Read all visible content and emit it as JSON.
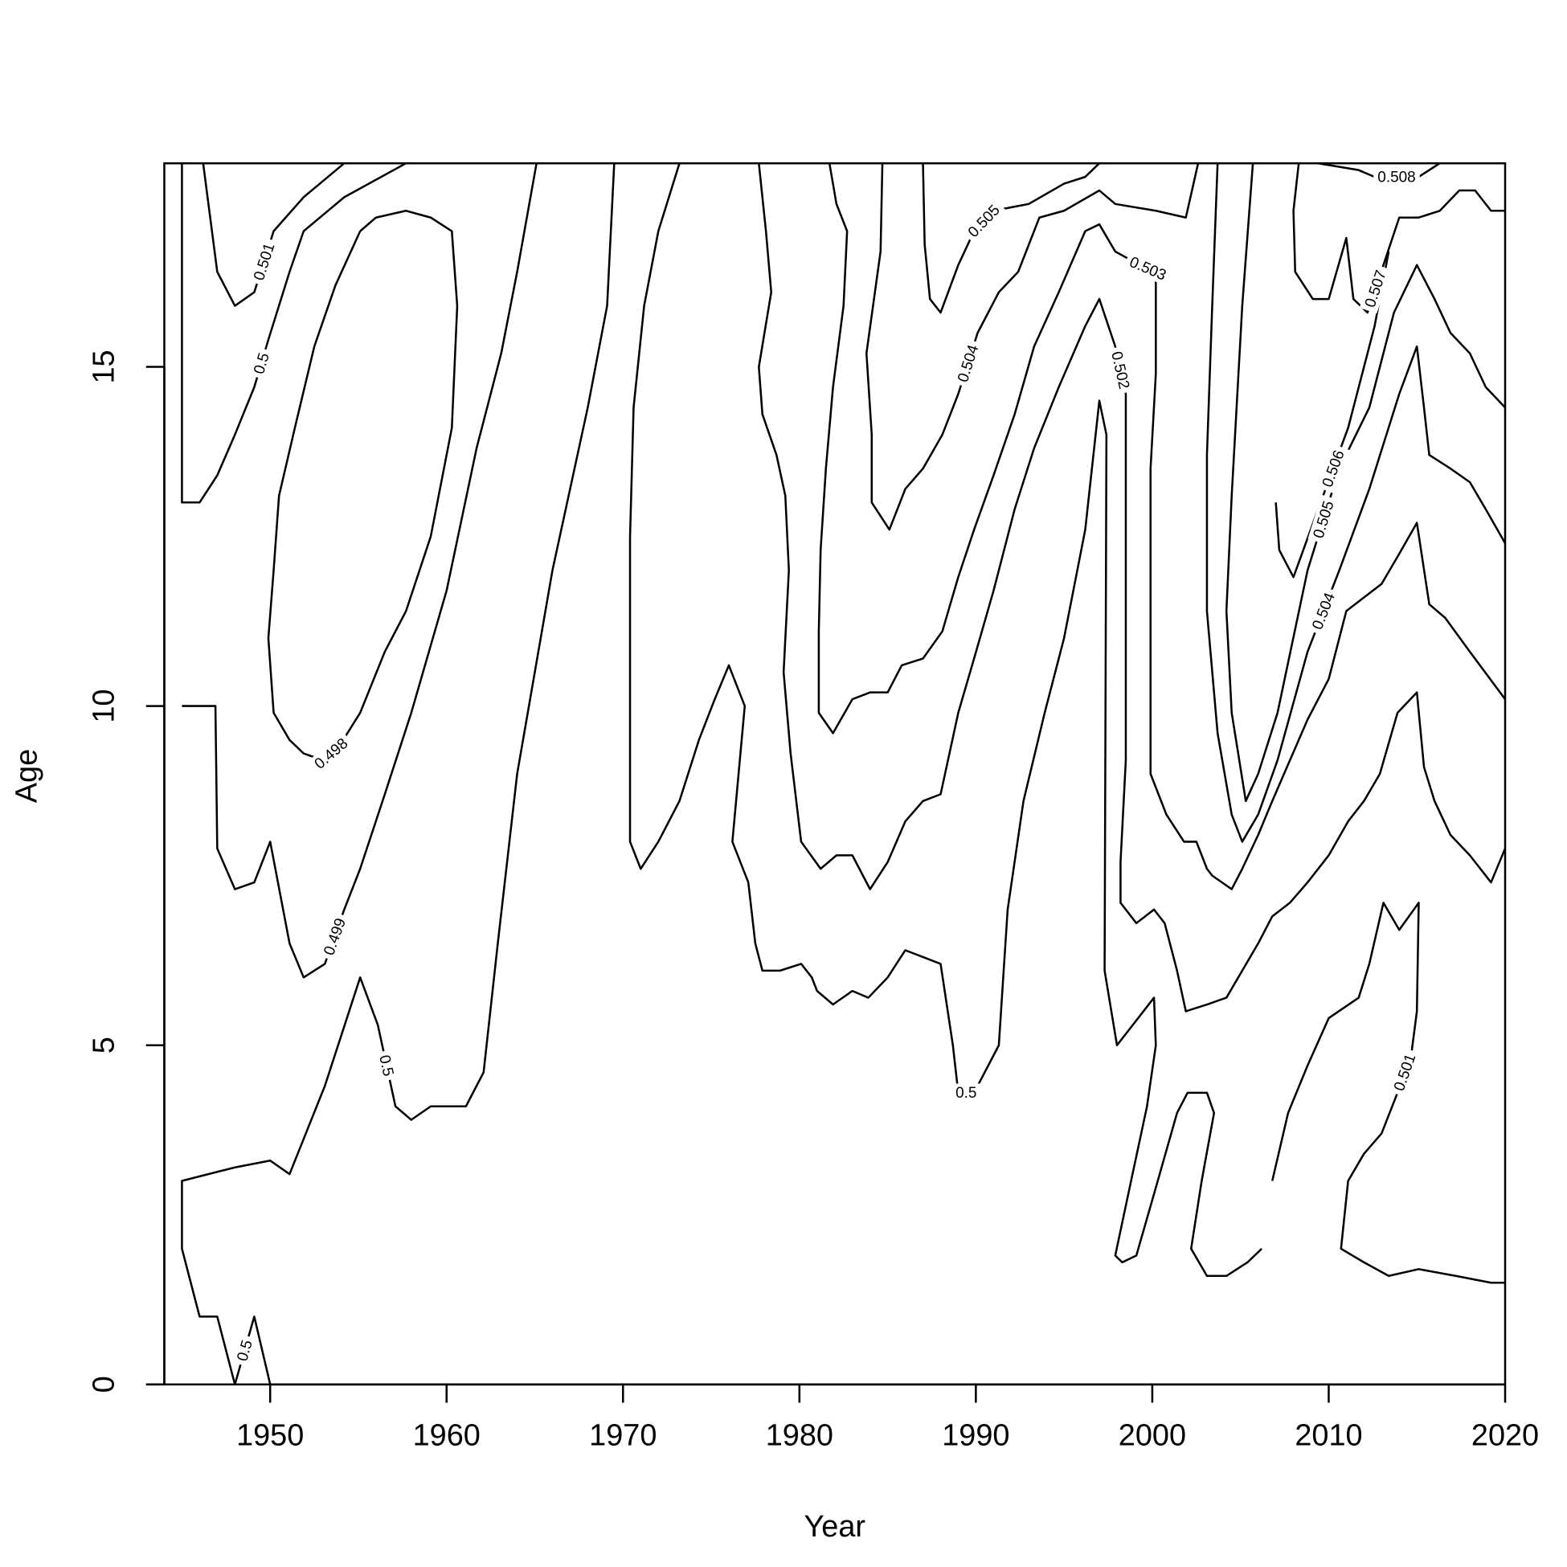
{
  "chart_data": {
    "type": "contour",
    "x_label": "Year",
    "y_label": "Age",
    "xlim": [
      1944,
      2020
    ],
    "ylim": [
      0,
      18
    ],
    "xticks": [
      1950,
      1960,
      1970,
      1980,
      1990,
      2000,
      2010,
      2020
    ],
    "yticks": [
      0,
      5,
      10,
      15
    ],
    "color": "#000000",
    "series": [
      {
        "level": 0.5,
        "x": [
          1950,
          1949.1,
          1948
        ],
        "y": [
          0,
          1,
          0
        ]
      },
      {
        "level": 0.501,
        "x": [
          1946.2,
          1947,
          1948,
          1949.1,
          1950.2,
          1951.9,
          1954.2
        ],
        "y": [
          18,
          16.4,
          15.9,
          16.1,
          17,
          17.5,
          18
        ]
      },
      {
        "level": 0.5,
        "x": [
          1945,
          1945,
          1946,
          1947,
          1948,
          1949.1,
          1949.9,
          1951.1,
          1951.9,
          1954.2,
          1957.7
        ],
        "y": [
          18,
          13,
          13,
          13.4,
          14,
          14.7,
          15.4,
          16.4,
          17,
          17.5,
          18
        ]
      },
      {
        "level": 0.498,
        "x": [
          1955.1,
          1956,
          1957.7,
          1959.1,
          1960.3,
          1960.6,
          1960.3,
          1959.1,
          1957.7,
          1956.5,
          1955.1,
          1953.9,
          1953,
          1951.9,
          1951.1,
          1950.2,
          1949.9,
          1950.2,
          1950.5,
          1951.4,
          1952.5,
          1953.7,
          1955.1
        ],
        "y": [
          17,
          17.2,
          17.3,
          17.2,
          17,
          15.9,
          14.1,
          12.5,
          11.4,
          10.8,
          9.9,
          9.4,
          9.2,
          9.3,
          9.5,
          9.9,
          11,
          12,
          13.1,
          14.1,
          15.3,
          16.2,
          17
        ]
      },
      {
        "level": 0.499,
        "x": [
          1945,
          1946.9,
          1947,
          1948,
          1949.1,
          1950,
          1951.1,
          1951.9,
          1953.1,
          1954.2,
          1955.1,
          1956.5,
          1958,
          1960,
          1961.7,
          1963.1,
          1964,
          1965.1
        ],
        "y": [
          10,
          10,
          7.9,
          7.3,
          7.4,
          8,
          6.5,
          6,
          6.2,
          7,
          7.6,
          8.7,
          9.9,
          11.7,
          13.8,
          15.2,
          16.4,
          18
        ]
      },
      {
        "level": 0.5,
        "x": [
          1948,
          1947,
          1946,
          1945,
          1945,
          1948,
          1950,
          1951.1,
          1953.1,
          1955.1,
          1956.1,
          1957.1,
          1958,
          1959.1,
          1961.1,
          1962.1,
          1962.9,
          1964,
          1966,
          1968,
          1969.1,
          1969.5
        ],
        "y": [
          0,
          1,
          1,
          2,
          3,
          3.2,
          3.3,
          3.1,
          4.4,
          6,
          5.3,
          4.1,
          3.9,
          4.1,
          4.1,
          4.6,
          6.5,
          9,
          12,
          14.4,
          15.9,
          18
        ]
      },
      {
        "level": 0.5,
        "x": [
          1973.2,
          1972,
          1971.2,
          1970.6,
          1970.4,
          1970.4,
          1971,
          1972,
          1973.2,
          1974.3,
          1975.2,
          1976,
          1976.9,
          1976.2,
          1977.1,
          1977.5,
          1977.9,
          1978.9,
          1980.1,
          1980.7,
          1981,
          1981.9,
          1983,
          1983.9,
          1985,
          1986,
          1987,
          1988,
          1988.7,
          1989,
          1989.9,
          1991.3,
          1991.8,
          1992.7,
          1993.9,
          1995,
          1996.2,
          1997,
          1997.4,
          1997.3,
          1998,
          2000.1,
          2000.2,
          1999.7,
          1998.8,
          1997.9,
          1998.3,
          1999.1,
          2000.2,
          2001.4,
          2002,
          2003.1,
          2003.5,
          2002.8,
          2002.2,
          2003.1,
          2004.2,
          2005.4,
          2006.2
        ],
        "y": [
          18,
          17,
          15.9,
          14.4,
          12.5,
          8,
          7.6,
          8,
          8.6,
          9.5,
          10.1,
          10.6,
          10,
          8,
          7.4,
          6.5,
          6.1,
          6.1,
          6.2,
          6,
          5.8,
          5.6,
          5.8,
          5.7,
          6,
          6.4,
          6.3,
          6.2,
          5,
          4.3,
          4.3,
          5,
          7,
          8.6,
          9.9,
          11,
          12.6,
          14.5,
          14,
          6.1,
          5,
          5.7,
          5,
          4.1,
          3,
          1.9,
          1.8,
          1.9,
          2.9,
          4,
          4.3,
          4.3,
          4,
          3,
          2,
          1.6,
          1.6,
          1.8,
          2
        ]
      },
      {
        "level": 0.501,
        "x": [
          2020,
          2019.2,
          2017.2,
          2015.1,
          2013.4,
          2012,
          2010.7,
          2011.1,
          2012,
          2013,
          2013.9,
          2014.7,
          2015,
          2015.1,
          2014,
          2013.1,
          2012.3,
          2011.7,
          2010,
          2008.8,
          2007.7,
          2006.8
        ],
        "y": [
          1.5,
          1.5,
          1.6,
          1.7,
          1.6,
          1.8,
          2,
          3,
          3.4,
          3.7,
          4.3,
          4.9,
          5.5,
          7.1,
          6.7,
          7.1,
          6.2,
          5.7,
          5.4,
          4.7,
          4,
          3
        ]
      },
      {
        "level": 0.505,
        "x": [
          1987,
          1987.1,
          1987.4,
          1988,
          1989,
          1989.9,
          1991,
          1993,
          1995,
          1996.2,
          1997
        ],
        "y": [
          18,
          16.8,
          16,
          15.8,
          16.5,
          17,
          17.3,
          17.4,
          17.7,
          17.8,
          18
        ]
      },
      {
        "level": 0.504,
        "x": [
          1984.7,
          1984.6,
          1983.8,
          1984.1,
          1984.1,
          1985.1,
          1986,
          1987,
          1988.1,
          1989,
          1990.1,
          1991.3,
          1992.4,
          1993.6,
          1995,
          1997,
          1997.9,
          2000.2,
          2001.9,
          2002.6
        ],
        "y": [
          18,
          16.7,
          15.2,
          14,
          13,
          12.6,
          13.2,
          13.5,
          14,
          14.6,
          15.5,
          16.1,
          16.4,
          17.2,
          17.3,
          17.6,
          17.4,
          17.3,
          17.2,
          18
        ]
      },
      {
        "level": 0.503,
        "x": [
          1981.7,
          1982.1,
          1982.7,
          1982.5,
          1981.9,
          1981.5,
          1981.2,
          1981.1,
          1981.1,
          1981.9,
          1983,
          1984,
          1985,
          1985.8,
          1987,
          1988.1,
          1989,
          1989.9,
          1991,
          1992.2,
          1993.3,
          1994.7,
          1996.2,
          1997,
          1997.9,
          1999.3,
          2000.2,
          2000.2,
          1999.9,
          1999.9,
          1999.9,
          2000.8,
          2001.8,
          2002.5,
          2003.1,
          2003.4,
          2004.5,
          2005.1,
          2006,
          2006.8,
          2007.8,
          2008.8,
          2010,
          2011,
          2012,
          2013,
          2013.9,
          2015,
          2015.7,
          2016.6,
          2018,
          2020
        ],
        "y": [
          18,
          17.4,
          17,
          15.9,
          14.7,
          13.5,
          12.3,
          11.1,
          9.9,
          9.6,
          10.1,
          10.2,
          10.2,
          10.6,
          10.7,
          11.1,
          11.9,
          12.6,
          13.4,
          14.3,
          15.3,
          16.1,
          17,
          17.1,
          16.7,
          16.5,
          16.4,
          14.9,
          13.5,
          12.3,
          9,
          8.4,
          8,
          8,
          7.6,
          7.5,
          7.3,
          7.6,
          8.1,
          8.6,
          9.2,
          9.8,
          10.4,
          11.4,
          11.6,
          11.8,
          12.2,
          12.7,
          11.5,
          11.3,
          10.8,
          10.1
        ]
      },
      {
        "level": 0.502,
        "x": [
          1977.7,
          1978.1,
          1978.4,
          1977.7,
          1977.9,
          1978.7,
          1979.2,
          1979.4,
          1979.1,
          1979.5,
          1980.1,
          1981.2,
          1982.1,
          1983,
          1984,
          1985,
          1986,
          1987,
          1988,
          1989,
          1989.9,
          1991,
          1992.2,
          1993.3,
          1994.7,
          1996.2,
          1997,
          1997.9,
          1998.5,
          1998.5,
          1998.2,
          1998.2,
          1999.1,
          2000.1,
          2000.7,
          2001.4,
          2001.9,
          2003.1,
          2004.2,
          2005.1,
          2006,
          2006.8,
          2007.8,
          2008.8,
          2010,
          2011.1,
          2012,
          2012.9,
          2013.9,
          2015,
          2015.4,
          2016,
          2016.9,
          2018,
          2019.2,
          2020
        ],
        "y": [
          18,
          17,
          16.1,
          15,
          14.3,
          13.7,
          13.1,
          12,
          10.5,
          9.3,
          8,
          7.6,
          7.8,
          7.8,
          7.3,
          7.7,
          8.3,
          8.6,
          8.7,
          9.9,
          10.7,
          11.7,
          12.9,
          13.8,
          14.7,
          15.6,
          16,
          15.3,
          14.6,
          9.2,
          7.7,
          7.1,
          6.8,
          7,
          6.8,
          6.1,
          5.5,
          5.6,
          5.7,
          6.1,
          6.5,
          6.9,
          7.1,
          7.4,
          7.8,
          8.3,
          8.6,
          9,
          9.9,
          10.2,
          9.1,
          8.6,
          8.1,
          7.8,
          7.4,
          7.9
        ]
      },
      {
        "level": 0.508,
        "x": [
          2009.4,
          2011.7,
          2012.6,
          2015.1,
          2016.3
        ],
        "y": [
          18,
          17.9,
          17.8,
          17.8,
          18
        ]
      },
      {
        "level": 0.507,
        "x": [
          2008.3,
          2008,
          2008.1,
          2009.1,
          2010,
          2011,
          2011.4,
          2012.2,
          2013.1,
          2014,
          2015.1,
          2016.3,
          2017.4,
          2018.3,
          2019.2,
          2020
        ],
        "y": [
          18,
          17.3,
          16.4,
          16,
          16,
          16.9,
          16,
          15.8,
          16.5,
          17.2,
          17.2,
          17.3,
          17.6,
          17.6,
          17.3,
          17.3
        ]
      },
      {
        "level": 0.505,
        "x": [
          2005.7,
          2005.1,
          2004.5,
          2004.2,
          2004.5,
          2005.3,
          2006,
          2007.1,
          2008.8,
          2010.6,
          2012.3,
          2013.7,
          2015,
          2016,
          2016.9,
          2018,
          2018.9,
          2020
        ],
        "y": [
          18,
          15.9,
          13.1,
          11.4,
          9.9,
          8.6,
          9,
          9.9,
          12,
          13.5,
          14.4,
          15.8,
          16.5,
          16,
          15.5,
          15.2,
          14.7,
          14.4
        ]
      },
      {
        "level": 0.504,
        "x": [
          2003.7,
          2003.4,
          2003.1,
          2003.1,
          2003.7,
          2004.5,
          2005.1,
          2006,
          2007.1,
          2008.8,
          2010.6,
          2012.3,
          2014,
          2015,
          2015.4,
          2015.7,
          2016.9,
          2018,
          2018.9,
          2020
        ],
        "y": [
          18,
          15.9,
          13.7,
          11.4,
          9.6,
          8.4,
          8,
          8.4,
          9.2,
          10.8,
          12,
          13.2,
          14.6,
          15.3,
          14.4,
          13.7,
          13.5,
          13.3,
          12.9,
          12.4
        ]
      },
      {
        "level": 0.506,
        "x": [
          2007,
          2007.2,
          2008,
          2009.4,
          2011.1,
          2012.6,
          2013.4
        ],
        "y": [
          13,
          12.3,
          11.9,
          12.9,
          14.1,
          15.6,
          16.7
        ]
      }
    ]
  }
}
